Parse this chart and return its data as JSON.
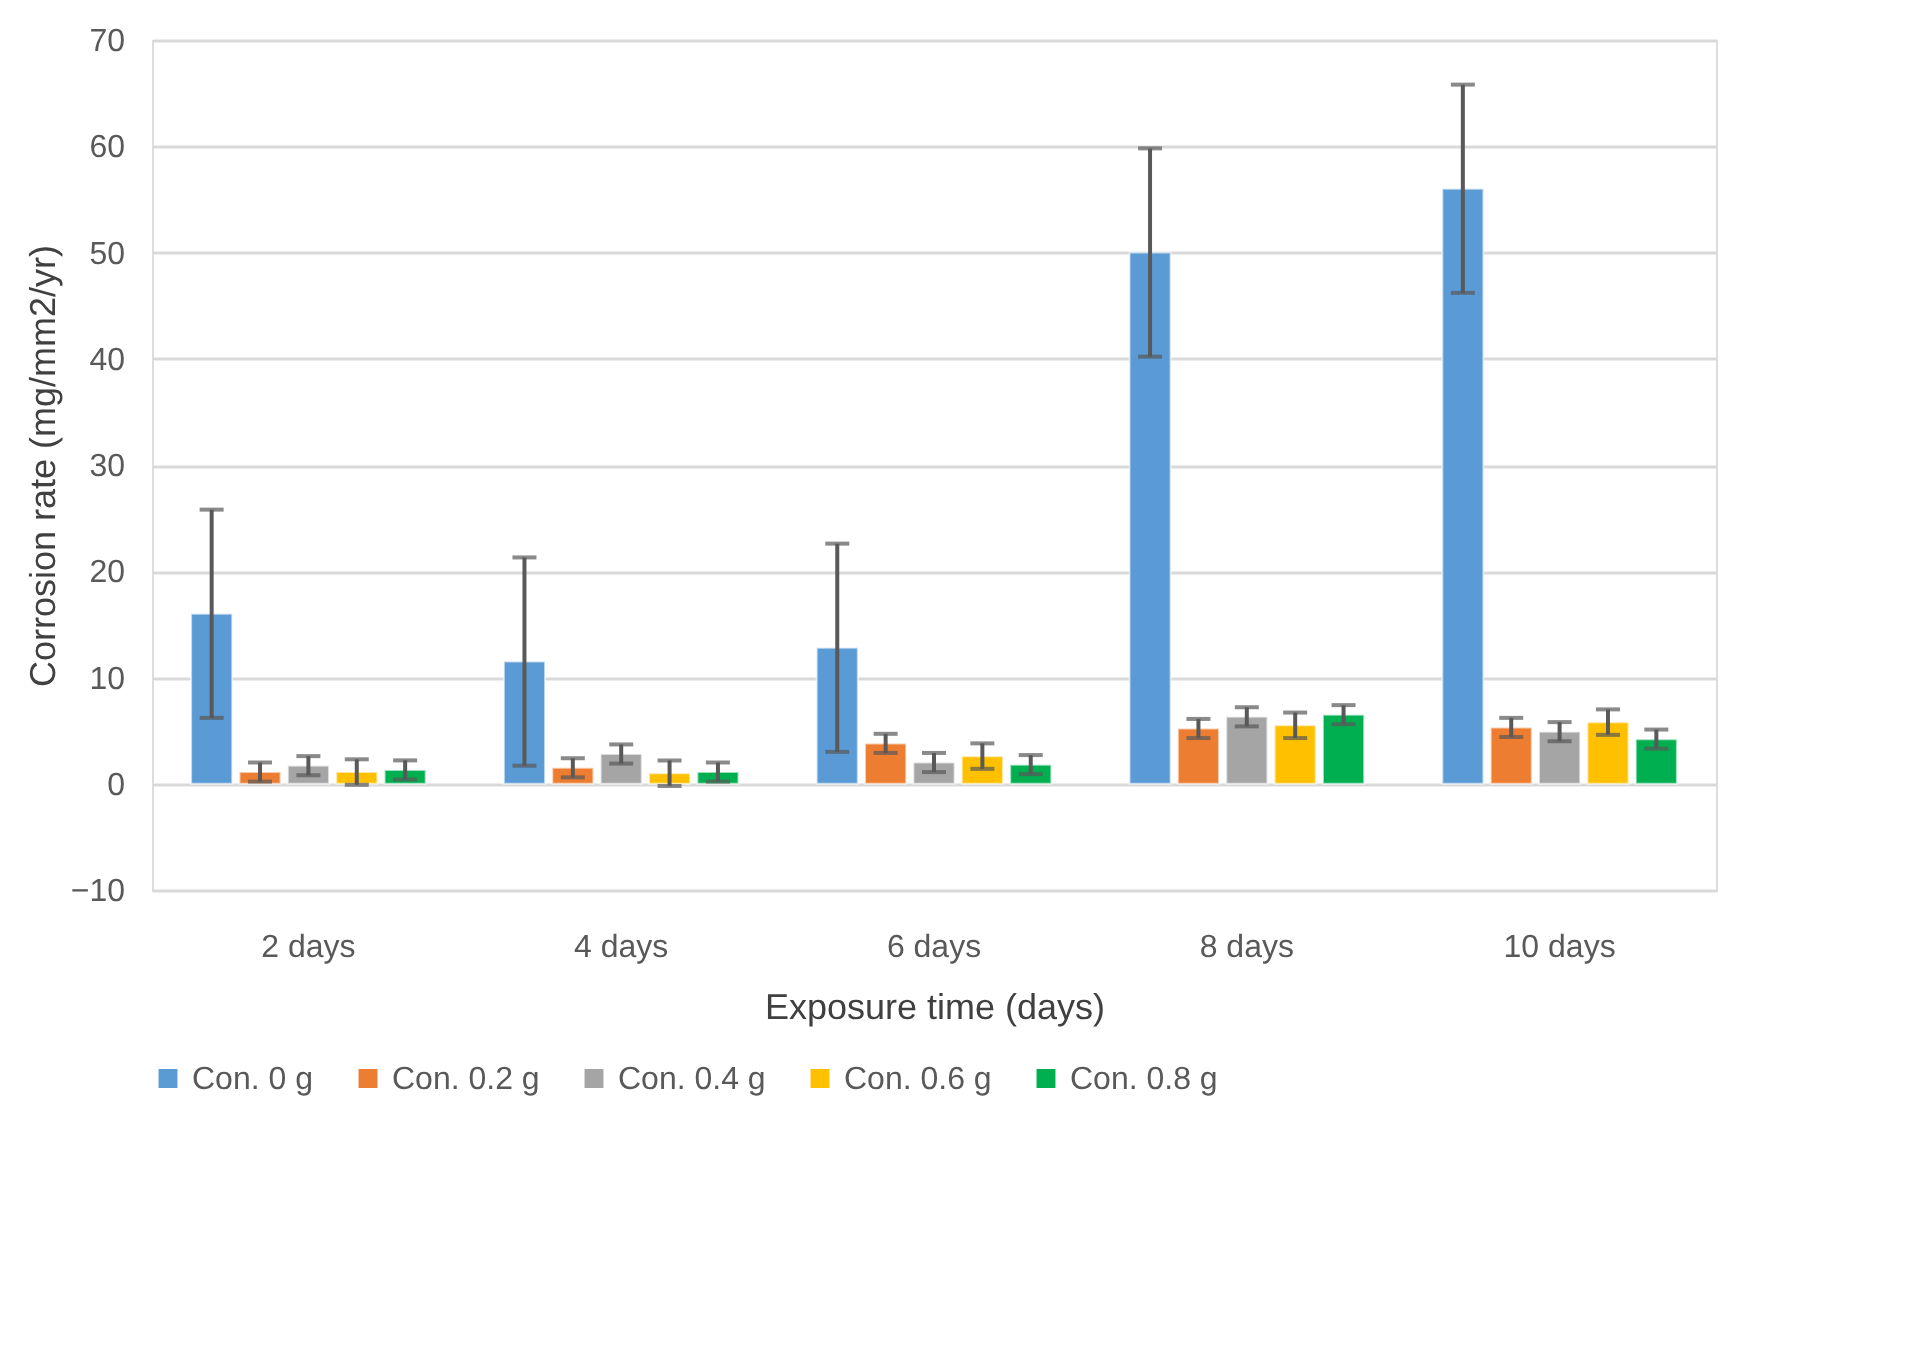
{
  "chart_data": {
    "type": "bar",
    "xlabel": "Exposure time (days)",
    "ylabel": "Corrosion rate (mg/mm2/yr)",
    "categories": [
      "2 days",
      "4 days",
      "6 days",
      "8 days",
      "10 days"
    ],
    "series": [
      {
        "name": "Con. 0 g",
        "color": "#5b9bd5",
        "values": [
          16,
          11.5,
          12.8,
          50,
          56
        ],
        "errors": [
          9.8,
          9.8,
          9.8,
          9.8,
          9.8
        ]
      },
      {
        "name": "Con. 0.2 g",
        "color": "#ed7d31",
        "values": [
          1.1,
          1.5,
          3.8,
          5.2,
          5.3
        ],
        "errors": [
          0.9,
          0.9,
          0.9,
          0.9,
          0.9
        ]
      },
      {
        "name": "Con. 0.4 g",
        "color": "#a5a5a5",
        "values": [
          1.7,
          2.8,
          2.0,
          6.3,
          4.9
        ],
        "errors": [
          0.9,
          0.9,
          0.9,
          0.9,
          0.9
        ]
      },
      {
        "name": "Con. 0.6 g",
        "color": "#ffc000",
        "values": [
          1.1,
          1.0,
          2.6,
          5.5,
          5.8
        ],
        "errors": [
          1.2,
          1.2,
          1.2,
          1.2,
          1.2
        ]
      },
      {
        "name": "Con. 0.8 g",
        "color": "#00b050",
        "values": [
          1.3,
          1.1,
          1.8,
          6.5,
          4.2
        ],
        "errors": [
          0.9,
          0.9,
          0.9,
          0.9,
          0.9
        ]
      }
    ],
    "ylim": [
      -10,
      70
    ],
    "yticks": [
      -10,
      0,
      10,
      20,
      30,
      40,
      50,
      60,
      70
    ],
    "grid": "y",
    "legend": "bottom"
  }
}
